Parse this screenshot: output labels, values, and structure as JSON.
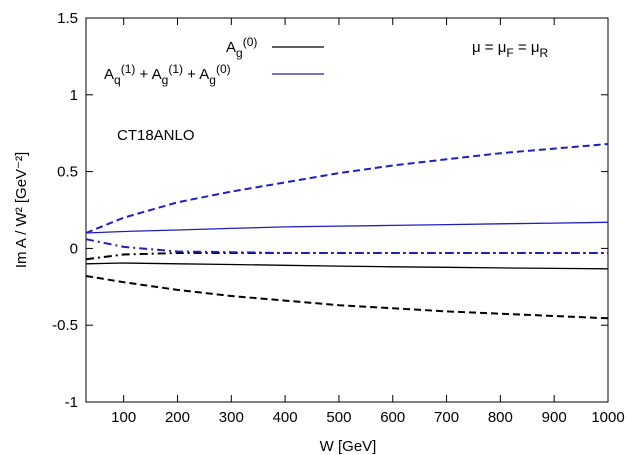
{
  "chart_data": {
    "type": "line",
    "title": "",
    "xlabel": "W [GeV]",
    "ylabel": "Im A / W² [GeV⁻²]",
    "xlim": [
      30,
      1000
    ],
    "ylim": [
      -1,
      1.5
    ],
    "x_ticks": [
      100,
      200,
      300,
      400,
      500,
      600,
      700,
      800,
      900,
      1000
    ],
    "x_tick_labels": [
      "100",
      "200",
      "300",
      "400",
      "500",
      "600",
      "700",
      "800",
      "900",
      "1000"
    ],
    "y_ticks": [
      -1,
      -0.5,
      0,
      0.5,
      1,
      1.5
    ],
    "y_tick_labels": [
      "-1",
      "-0.5",
      "0",
      "0.5",
      "1",
      "1.5"
    ],
    "grid": false,
    "legend_position": "top-center",
    "legend": [
      {
        "label": "A_g^(0)",
        "color": "#000000",
        "style": "solid"
      },
      {
        "label": "A_q^(1) + A_g^(1) + A_g^(0)",
        "color": "#1f1fbf",
        "style": "solid"
      }
    ],
    "annotations": [
      {
        "text": "μ = μ_F = μ_R",
        "position": "top-right"
      },
      {
        "text": "CT18ANLO",
        "position": "upper-left"
      }
    ],
    "x": [
      30,
      100,
      200,
      300,
      400,
      500,
      600,
      700,
      800,
      900,
      1000
    ],
    "series": [
      {
        "color": "#000000",
        "style": "solid",
        "values": [
          -0.1,
          -0.095,
          -0.1,
          -0.105,
          -0.11,
          -0.115,
          -0.12,
          -0.123,
          -0.127,
          -0.13,
          -0.133
        ]
      },
      {
        "color": "#000000",
        "style": "dashed",
        "values": [
          -0.18,
          -0.22,
          -0.27,
          -0.31,
          -0.34,
          -0.37,
          -0.39,
          -0.41,
          -0.425,
          -0.44,
          -0.455
        ]
      },
      {
        "color": "#000000",
        "style": "dashdot",
        "values": [
          -0.07,
          -0.04,
          -0.03,
          -0.03,
          -0.03,
          -0.03,
          -0.03,
          -0.03,
          -0.03,
          -0.03,
          -0.03
        ]
      },
      {
        "color": "#1f1fbf",
        "style": "solid",
        "values": [
          0.1,
          0.11,
          0.12,
          0.13,
          0.14,
          0.145,
          0.15,
          0.155,
          0.16,
          0.165,
          0.17
        ]
      },
      {
        "color": "#1f1fbf",
        "style": "dashed",
        "values": [
          0.1,
          0.2,
          0.3,
          0.37,
          0.43,
          0.49,
          0.54,
          0.58,
          0.62,
          0.65,
          0.68
        ]
      },
      {
        "color": "#1f1fbf",
        "style": "dashdot",
        "values": [
          0.06,
          0.01,
          -0.02,
          -0.025,
          -0.03,
          -0.03,
          -0.03,
          -0.03,
          -0.03,
          -0.03,
          -0.03
        ]
      }
    ]
  }
}
